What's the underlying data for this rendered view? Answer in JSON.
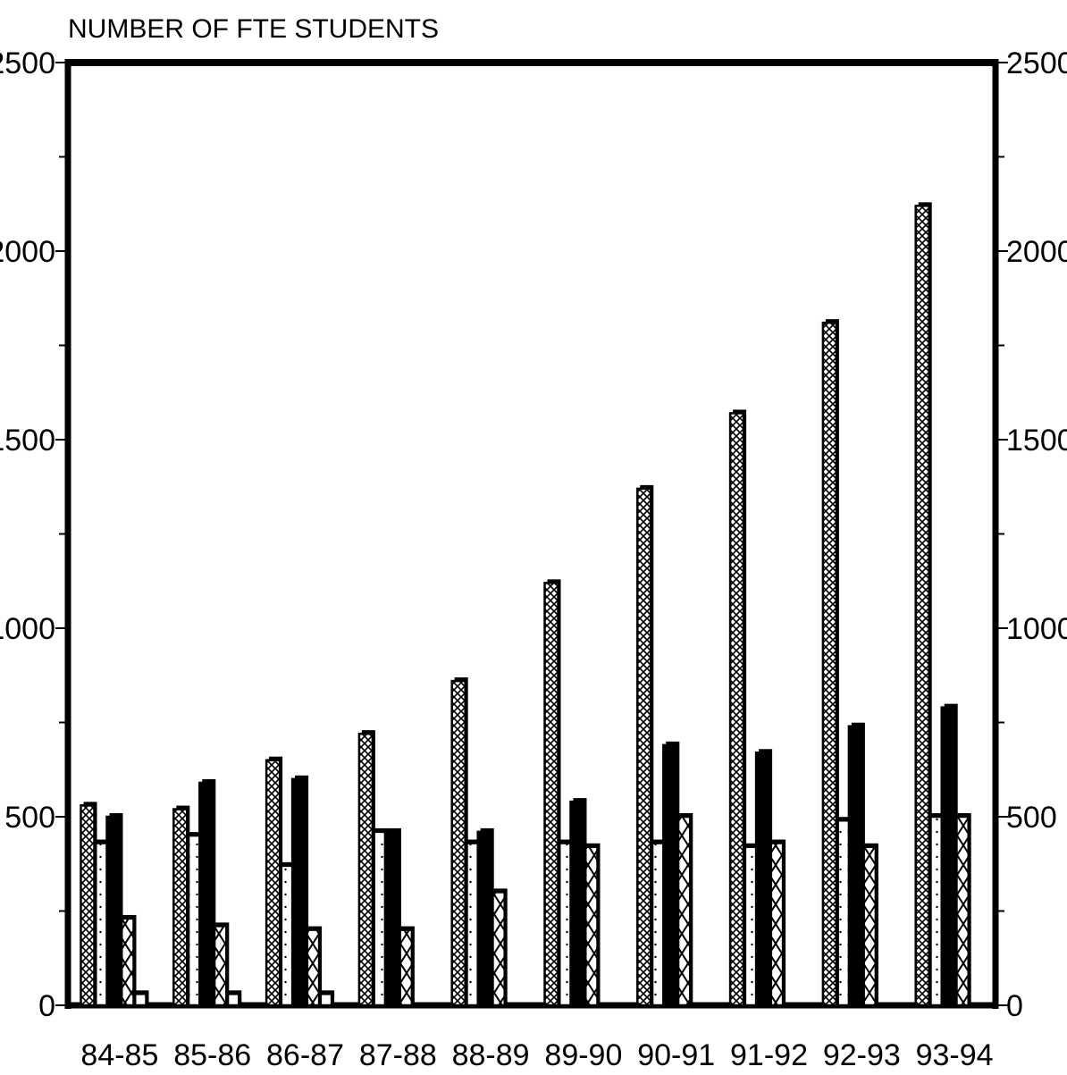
{
  "chart_data": {
    "type": "bar",
    "title": "NUMBER OF FTE STUDENTS",
    "xlabel": "",
    "ylabel": "",
    "ylim": [
      0,
      2500
    ],
    "yticks": [
      0,
      500,
      1000,
      1500,
      2000,
      2500
    ],
    "ytick_labels": [
      "0",
      "500",
      "1000",
      "1500",
      "2000",
      "2500"
    ],
    "secondary_y_axis": true,
    "grid": false,
    "legend": "none",
    "categories": [
      "84-85",
      "85-86",
      "86-87",
      "87-88",
      "88-89",
      "89-90",
      "90-91",
      "91-92",
      "92-93",
      "93-94"
    ],
    "series": [
      {
        "pattern": "dense-crosshatch",
        "values": [
          530,
          520,
          650,
          720,
          860,
          1120,
          1370,
          1570,
          1810,
          2120
        ]
      },
      {
        "pattern": "dotted",
        "values": [
          430,
          450,
          370,
          460,
          430,
          430,
          430,
          420,
          490,
          500
        ]
      },
      {
        "pattern": "solid",
        "values": [
          500,
          590,
          600,
          460,
          460,
          540,
          690,
          670,
          740,
          790
        ]
      },
      {
        "pattern": "open-crosshatch",
        "values": [
          230,
          210,
          200,
          200,
          300,
          420,
          500,
          430,
          420,
          500
        ]
      },
      {
        "pattern": "hollow",
        "values": [
          30,
          30,
          30,
          0,
          0,
          0,
          0,
          0,
          0,
          0
        ]
      }
    ]
  }
}
